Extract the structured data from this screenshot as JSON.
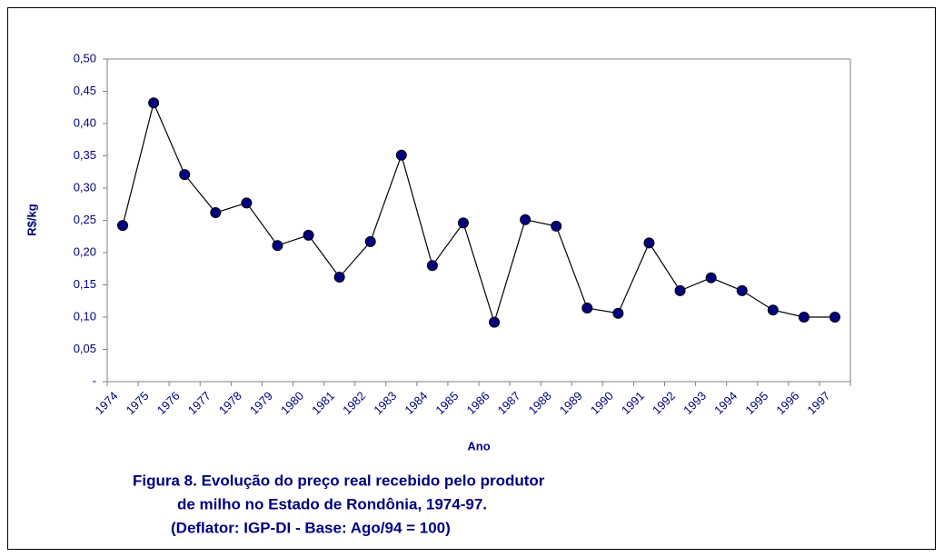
{
  "chart_data": {
    "type": "line",
    "caption": [
      "Figura 8. Evolução do preço real recebido pelo produtor",
      "de milho no Estado de Rondônia, 1974-97.",
      "(Deflator: IGP-DI - Base: Ago/94 = 100)"
    ],
    "y_label": "R$/kg",
    "x_label": "Ano",
    "categories": [
      "1974",
      "1975",
      "1976",
      "1977",
      "1978",
      "1979",
      "1980",
      "1981",
      "1982",
      "1983",
      "1984",
      "1985",
      "1986",
      "1987",
      "1988",
      "1989",
      "1990",
      "1991",
      "1992",
      "1993",
      "1994",
      "1995",
      "1996",
      "1997"
    ],
    "values": [
      0.242,
      0.432,
      0.321,
      0.262,
      0.277,
      0.211,
      0.227,
      0.162,
      0.217,
      0.351,
      0.18,
      0.246,
      0.092,
      0.251,
      0.241,
      0.114,
      0.106,
      0.215,
      0.141,
      0.161,
      0.141,
      0.111,
      0.1,
      0.1
    ],
    "color": "#000080",
    "line_color": "#000000",
    "ylim": [
      0,
      0.5
    ],
    "yticks": [
      {
        "value": 0,
        "label": "-"
      },
      {
        "value": 0.05,
        "label": "0,05"
      },
      {
        "value": 0.1,
        "label": "0,10"
      },
      {
        "value": 0.15,
        "label": "0,15"
      },
      {
        "value": 0.2,
        "label": "0,20"
      },
      {
        "value": 0.25,
        "label": "0,25"
      },
      {
        "value": 0.3,
        "label": "0,30"
      },
      {
        "value": 0.35,
        "label": "0,35"
      },
      {
        "value": 0.4,
        "label": "0,40"
      },
      {
        "value": 0.45,
        "label": "0,45"
      },
      {
        "value": 0.5,
        "label": "0,50"
      }
    ],
    "grid": false
  }
}
